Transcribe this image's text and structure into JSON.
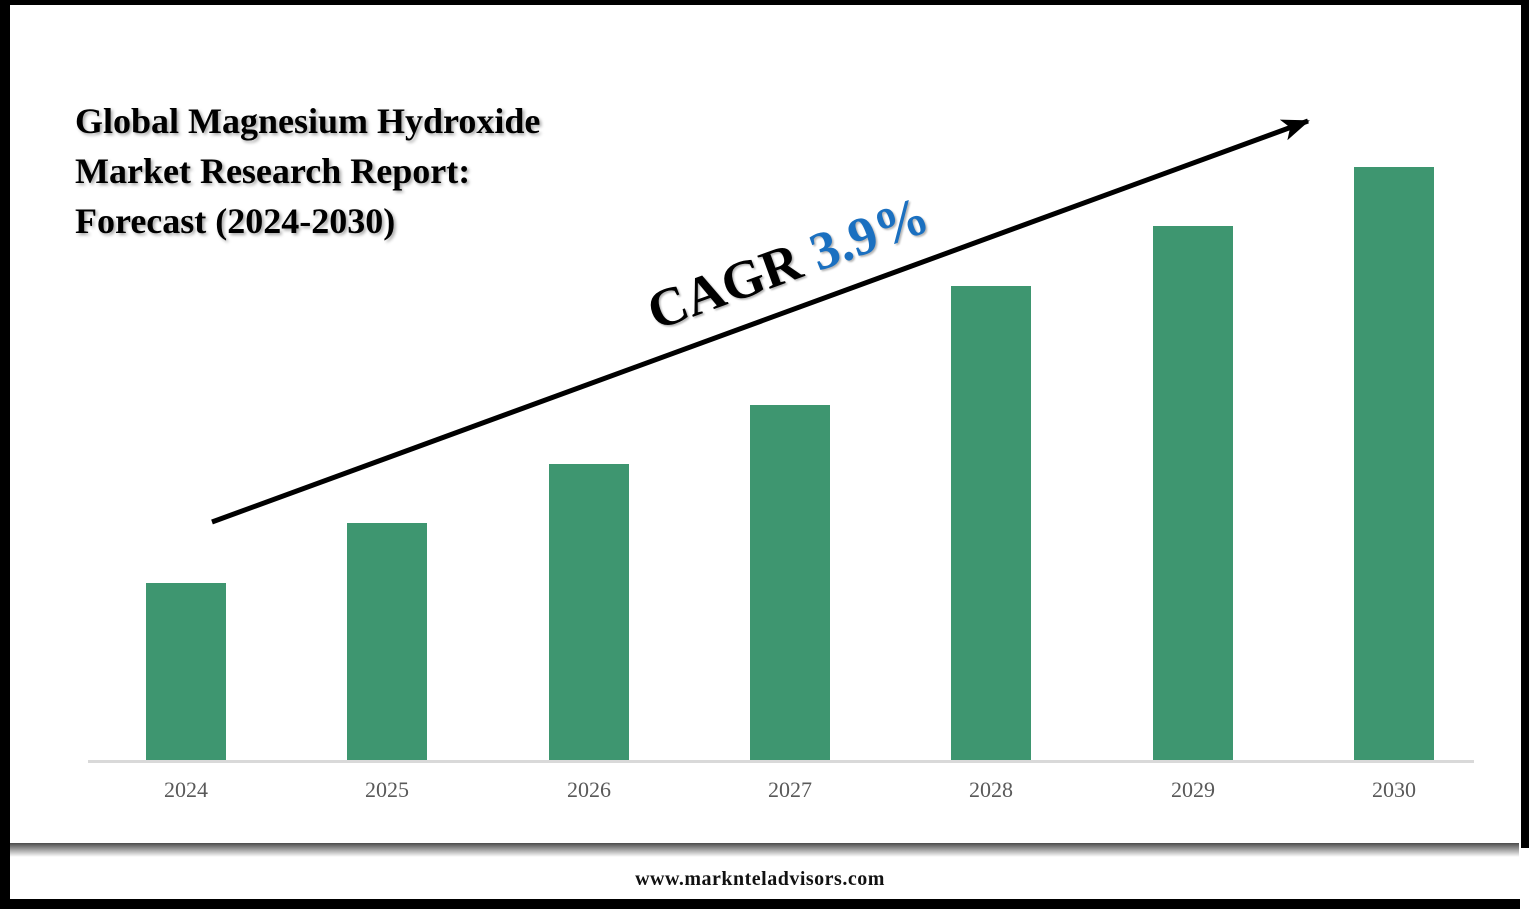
{
  "title": {
    "line1": "Global Magnesium Hydroxide",
    "line2": "Market Research Report:",
    "line3": "Forecast (2024-2030)"
  },
  "annotation": {
    "prefix": "CAGR",
    "value": "3.9%",
    "value_color": "#1B70C0"
  },
  "footer": {
    "url": "www.marknteladvisors.com"
  },
  "chart_data": {
    "type": "bar",
    "title": "Global Magnesium Hydroxide Market Research Report: Forecast (2024-2030)",
    "categories": [
      "2024",
      "2025",
      "2026",
      "2027",
      "2028",
      "2029",
      "2030"
    ],
    "values": [
      30,
      40,
      50,
      60,
      80,
      90,
      100
    ],
    "ylim": [
      0,
      100
    ],
    "xlabel": "",
    "ylabel": "",
    "grid": false,
    "legend_position": "none",
    "bar_color": "#3E9670",
    "axis_color": "#D9D9D9",
    "tick_label_color": "#595959",
    "trend_annotation": "CAGR 3.9%"
  }
}
